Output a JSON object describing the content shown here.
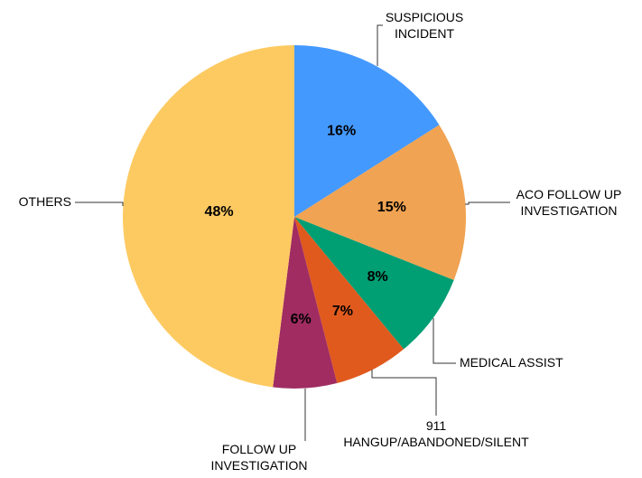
{
  "chart_data": {
    "type": "pie",
    "categories": [
      "SUSPICIOUS\nINCIDENT",
      "ACO FOLLOW UP\nINVESTIGATION",
      "MEDICAL ASSIST",
      "911\nHANGUP/ABANDONED/SILENT",
      "FOLLOW UP\nINVESTIGATION",
      "OTHERS"
    ],
    "values": [
      16,
      15,
      8,
      7,
      6,
      48
    ],
    "value_labels": [
      "16%",
      "15%",
      "8%",
      "7%",
      "6%",
      "48%"
    ],
    "colors": [
      "#4499ff",
      "#f0a352",
      "#009e73",
      "#e05a1e",
      "#a02c62",
      "#fdca62"
    ]
  }
}
